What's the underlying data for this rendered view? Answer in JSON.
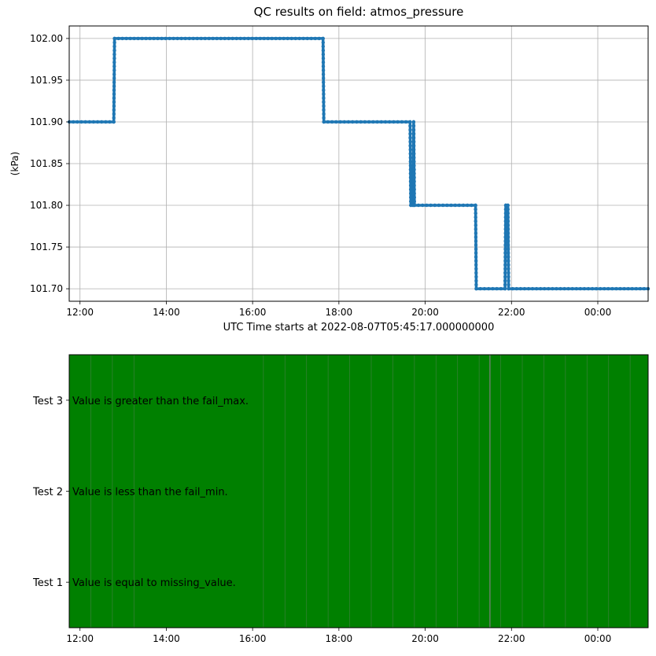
{
  "chart_data": [
    {
      "type": "line",
      "title": "QC results on field: atmos_pressure",
      "xlabel": "UTC Time starts at 2022-08-07T05:45:17.000000000",
      "ylabel": "(kPa)",
      "grid": true,
      "xlim": [
        "11:45",
        "01:10"
      ],
      "ylim": [
        101.685,
        102.015
      ],
      "x_ticks": [
        "12:00",
        "14:00",
        "16:00",
        "18:00",
        "20:00",
        "22:00",
        "00:00"
      ],
      "y_ticks": [
        "101.70",
        "101.75",
        "101.80",
        "101.85",
        "101.90",
        "101.95",
        "102.00"
      ],
      "color": "#1f77b4",
      "series": [
        {
          "x": [
            "11:45",
            "12:47",
            "12:48",
            "17:38",
            "17:39",
            "19:39",
            "19:40",
            "19:43",
            "19:44",
            "19:45",
            "21:10",
            "21:11",
            "21:51",
            "21:52",
            "21:55",
            "21:56",
            "01:10"
          ],
          "values": [
            101.9,
            101.9,
            102.0,
            102.0,
            101.9,
            101.9,
            101.8,
            101.8,
            101.9,
            101.8,
            101.8,
            101.7,
            101.7,
            101.8,
            101.8,
            101.7,
            101.7
          ]
        }
      ]
    },
    {
      "type": "heatmap",
      "xlim": [
        "11:45",
        "01:10"
      ],
      "x_ticks": [
        "12:00",
        "14:00",
        "16:00",
        "18:00",
        "20:00",
        "22:00",
        "00:00"
      ],
      "y_ticks": [
        "Test 1",
        "Test 2",
        "Test 3"
      ],
      "annotations": [
        "Value is equal to missing_value.",
        "Value is less than the fail_min.",
        "Value is greater than the fail_max."
      ],
      "pass_color": "#008000",
      "grid_color": "#808080",
      "status": "all values pass all tests",
      "vertical_lines": [
        "12:15",
        "12:45",
        "13:15",
        "16:15",
        "16:45",
        "17:15",
        "17:45",
        "18:15",
        "18:45",
        "19:15",
        "19:45",
        "20:15",
        "20:45",
        "21:15",
        "21:30",
        "21:45",
        "22:15",
        "22:45",
        "23:15",
        "23:45",
        "00:15",
        "00:45"
      ]
    }
  ]
}
